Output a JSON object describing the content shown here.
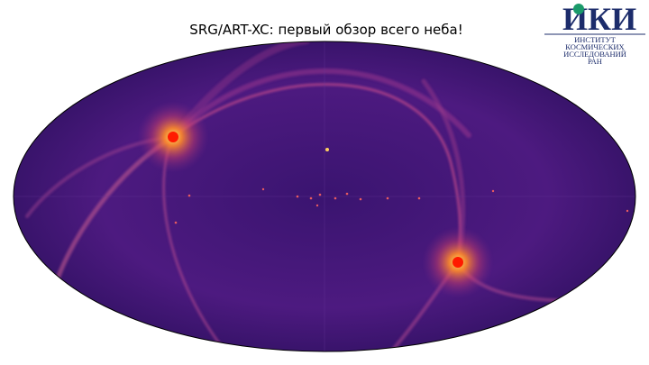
{
  "header": {
    "title": "SRG/ART-XC: первый обзор всего неба!"
  },
  "logo": {
    "acronym": "ИКИ",
    "lines": [
      "ИНСТИТУТ",
      "КОСМИЧЕСКИХ",
      "ИССЛЕДОВАНИЙ",
      "РАН"
    ]
  }
}
